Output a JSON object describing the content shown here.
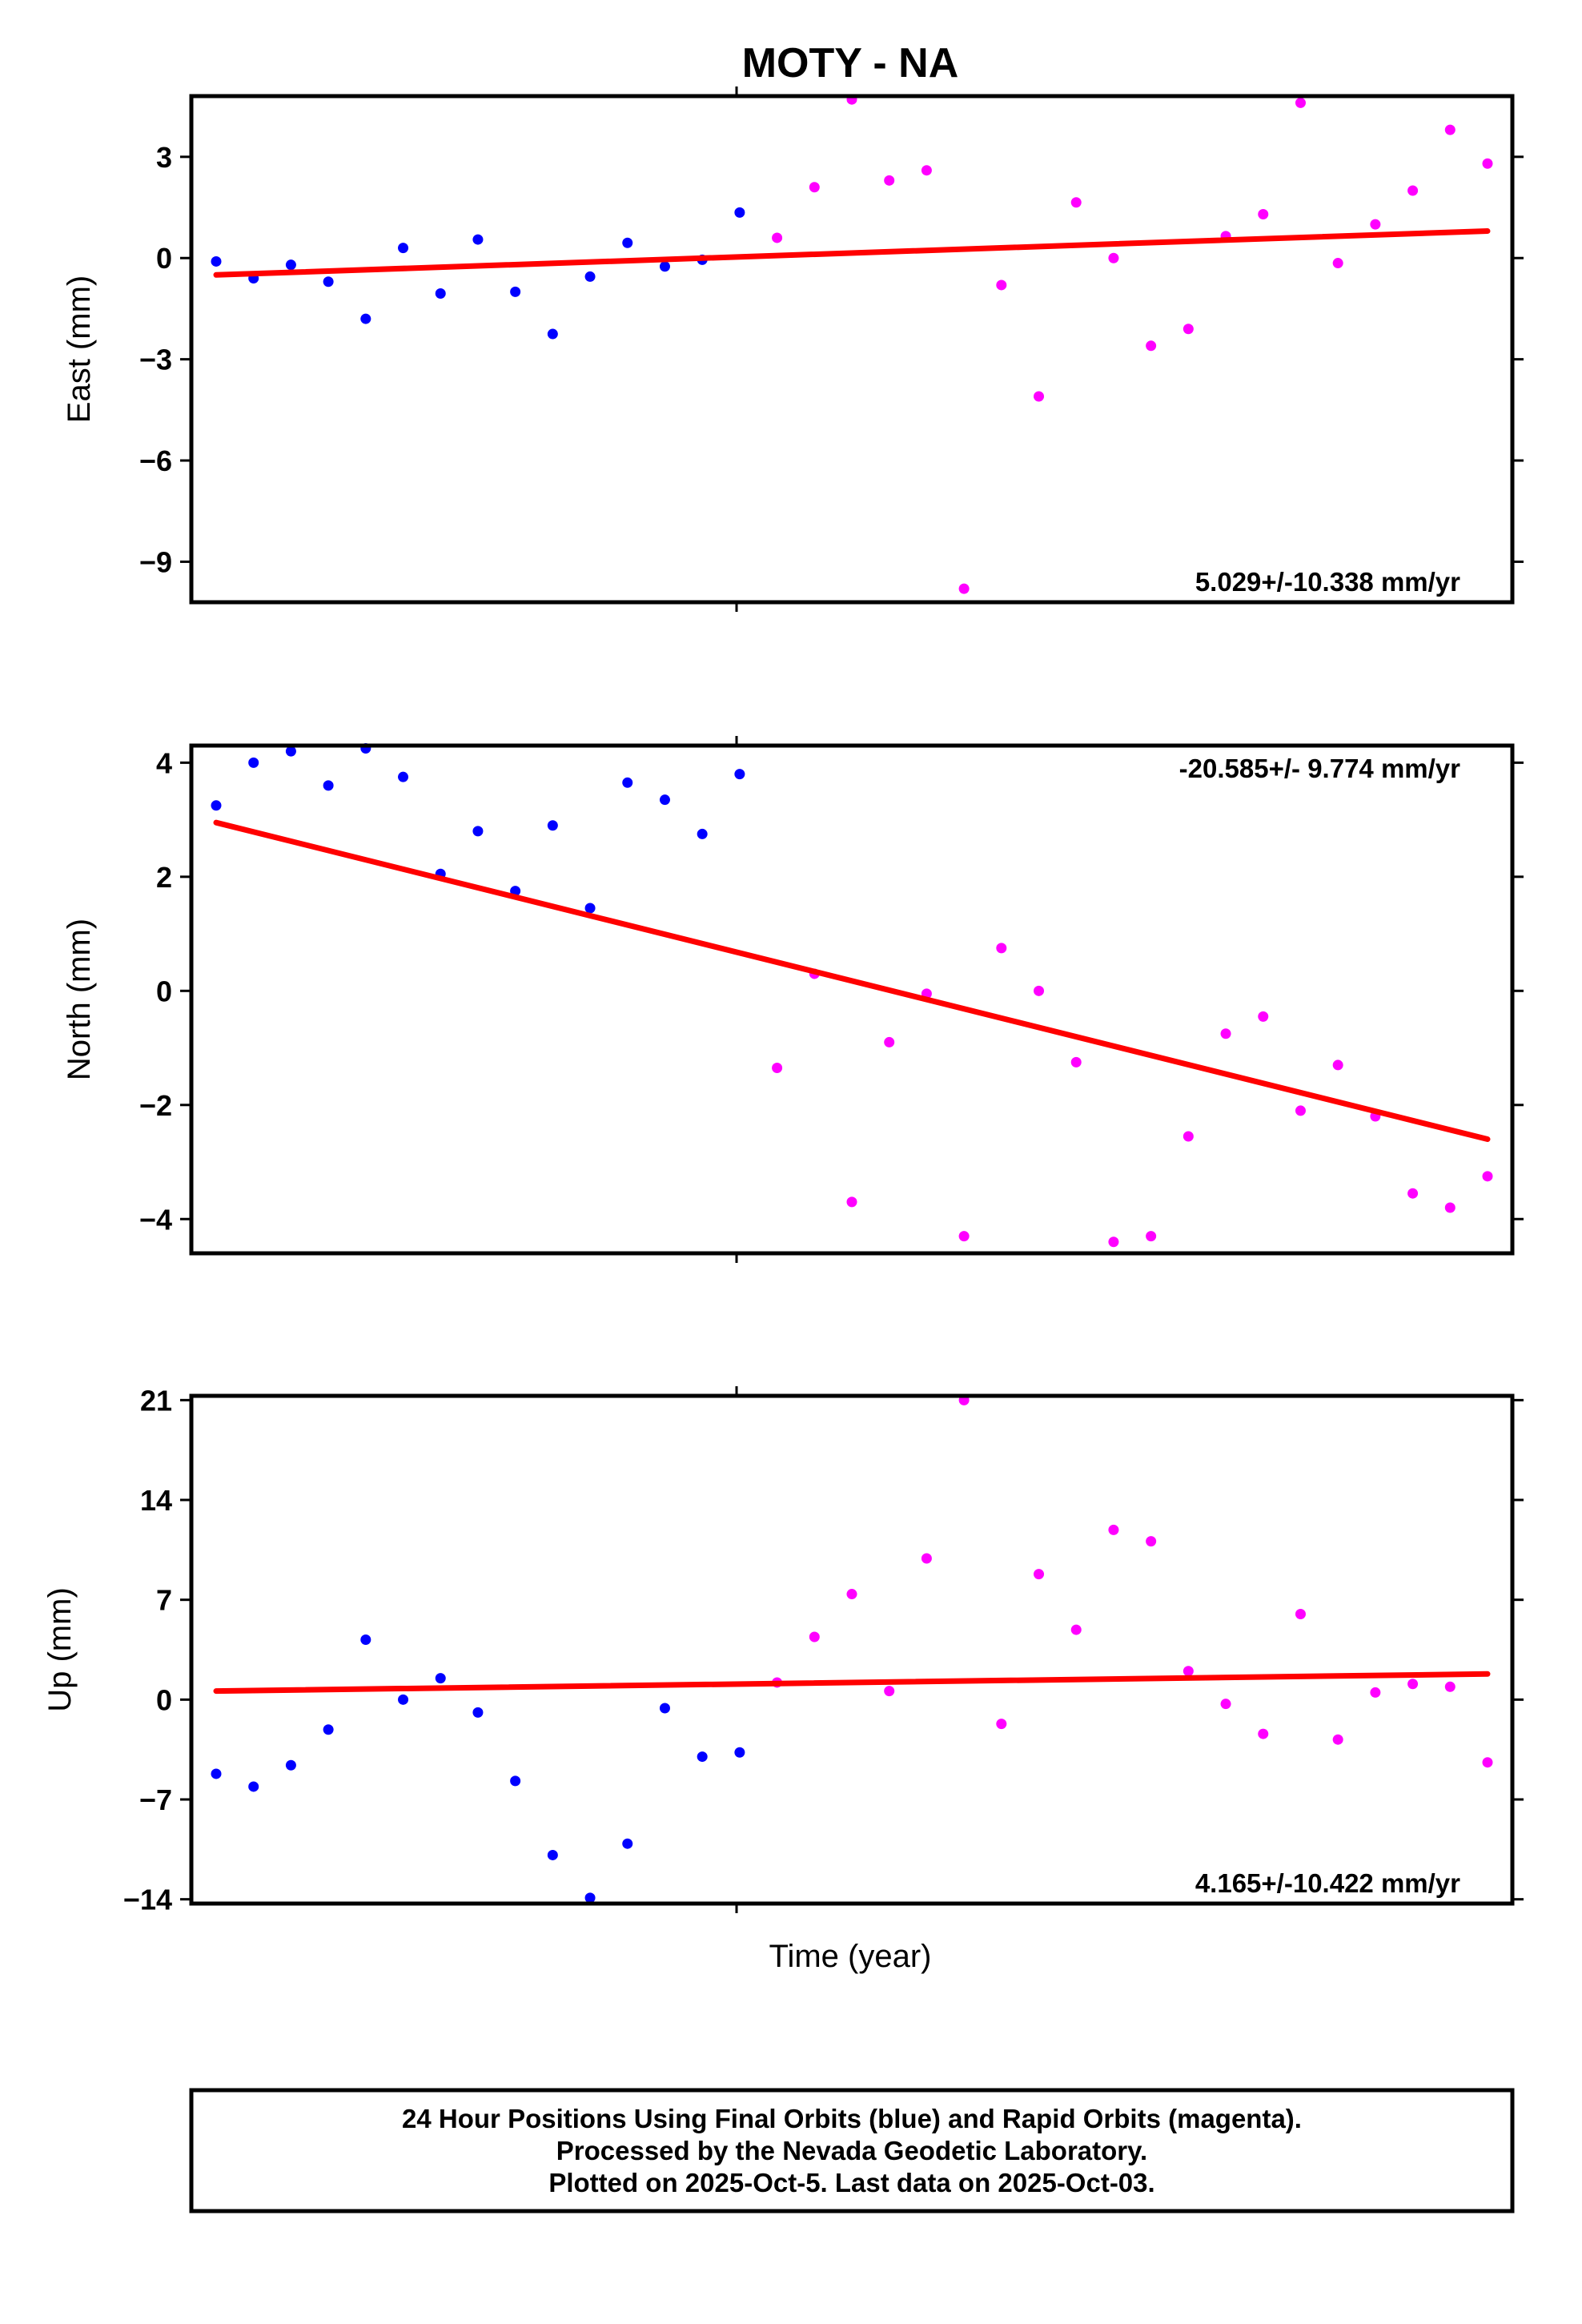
{
  "title": "MOTY - NA",
  "xlabel": "Time (year)",
  "footer": {
    "line1": "24 Hour Positions Using Final Orbits (blue) and Rapid Orbits (magenta).",
    "line2": "Processed by the Nevada Geodetic Laboratory.",
    "line3": "Plotted on 2025-Oct-5. Last data on 2025-Oct-03."
  },
  "colors": {
    "final": "#0000ff",
    "rapid": "#ff00ff",
    "fit": "#ff0000",
    "frame": "#000000"
  },
  "chart_data": [
    {
      "type": "scatter",
      "ylabel": "East (mm)",
      "ylim": [
        -10.2,
        4.8
      ],
      "yticks": [
        3,
        0,
        -3,
        -6,
        -9
      ],
      "ytick_labels": [
        "3",
        "0",
        "−3",
        "−6",
        "−9"
      ],
      "rate": "5.029+/-10.338 mm/yr",
      "rate_position": "bottom-right",
      "fit": [
        -0.5,
        0.8
      ],
      "series": [
        {
          "orbit": "final",
          "values": [
            -0.1,
            -0.6,
            -0.2,
            -0.7,
            -1.8,
            0.3,
            -1.05,
            0.55,
            -1.0,
            -2.25,
            -0.55,
            0.45,
            -0.25,
            -0.05,
            1.35
          ]
        },
        {
          "orbit": "rapid",
          "values": [
            0.6,
            2.1,
            4.7,
            2.3,
            2.6,
            -9.8,
            -0.8,
            -4.1,
            1.65,
            0.0,
            -2.6,
            -2.1,
            0.65,
            1.3,
            4.6,
            -0.15,
            1.0,
            2.0,
            3.8,
            2.8
          ]
        }
      ]
    },
    {
      "type": "scatter",
      "ylabel": "North (mm)",
      "ylim": [
        -4.6,
        4.3
      ],
      "yticks": [
        4,
        2,
        0,
        -2,
        -4
      ],
      "ytick_labels": [
        "4",
        "2",
        "0",
        "−2",
        "−4"
      ],
      "rate": "-20.585+/- 9.774 mm/yr",
      "rate_position": "top-right",
      "fit": [
        2.95,
        -2.6
      ],
      "series": [
        {
          "orbit": "final",
          "values": [
            3.25,
            4.0,
            4.2,
            3.6,
            4.25,
            3.75,
            2.05,
            2.8,
            1.75,
            2.9,
            1.45,
            3.65,
            3.35,
            2.75,
            3.8
          ]
        },
        {
          "orbit": "rapid",
          "values": [
            -1.35,
            0.3,
            -3.7,
            -0.9,
            -0.05,
            -4.3,
            0.75,
            0.0,
            -1.25,
            -4.4,
            -4.3,
            -2.55,
            -0.75,
            -0.45,
            -2.1,
            -1.3,
            -2.2,
            -3.55,
            -3.8,
            -3.25
          ]
        }
      ]
    },
    {
      "type": "scatter",
      "ylabel": "Up (mm)",
      "ylim": [
        -14.3,
        21.3
      ],
      "yticks": [
        21,
        14,
        7,
        0,
        -7,
        -14
      ],
      "ytick_labels": [
        "21",
        "14",
        "7",
        "0",
        "−7",
        "−14"
      ],
      "rate": "4.165+/-10.422 mm/yr",
      "rate_position": "bottom-right",
      "fit": [
        0.6,
        1.8
      ],
      "series": [
        {
          "orbit": "final",
          "values": [
            -5.2,
            -6.1,
            -4.6,
            -2.1,
            4.2,
            0.0,
            1.5,
            -0.9,
            -5.7,
            -10.9,
            -13.9,
            -10.1,
            -0.6,
            -4.0,
            -3.7
          ]
        },
        {
          "orbit": "rapid",
          "values": [
            1.2,
            4.4,
            7.4,
            0.6,
            9.9,
            21.0,
            -1.7,
            8.8,
            4.9,
            11.9,
            11.1,
            2.0,
            -0.3,
            -2.4,
            6.0,
            -2.8,
            0.5,
            1.1,
            0.9,
            -4.4
          ]
        }
      ]
    }
  ]
}
